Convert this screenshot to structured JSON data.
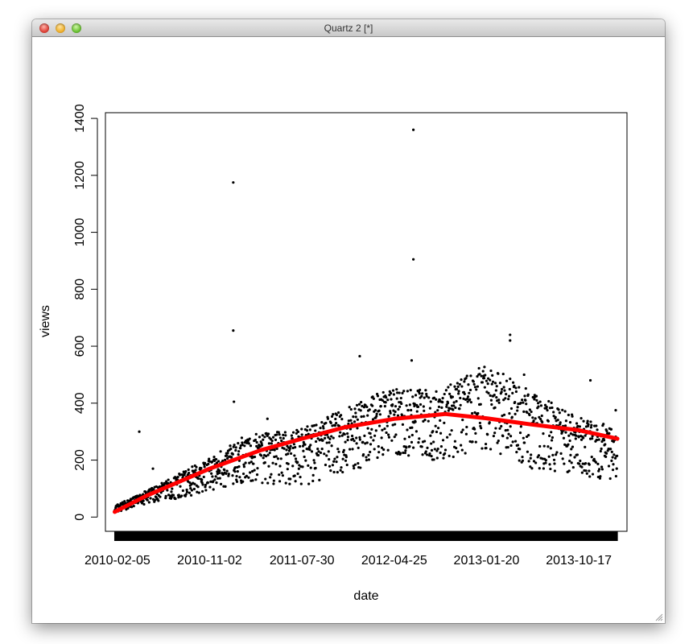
{
  "window": {
    "title": "Quartz 2 [*]"
  },
  "colors": {
    "smooth_line": "#ff0000",
    "points": "#000000"
  },
  "chart_data": {
    "type": "scatter",
    "title": "",
    "xlabel": "date",
    "ylabel": "views",
    "x_axis_type": "date",
    "xlim": [
      "2010-01-01",
      "2014-03-07"
    ],
    "ylim": [
      -50,
      1420
    ],
    "y_ticks": [
      0,
      200,
      400,
      600,
      800,
      1000,
      1200,
      1400
    ],
    "x_ticks": [
      "2010-02-05",
      "2010-11-02",
      "2011-07-30",
      "2012-04-25",
      "2013-01-20",
      "2013-10-17"
    ],
    "grid": false,
    "legend": "none",
    "rug_range": [
      "2010-01-28",
      "2014-02-07"
    ],
    "outliers": [
      {
        "x": "2010-04-10",
        "y": 300
      },
      {
        "x": "2010-05-20",
        "y": 170
      },
      {
        "x": "2011-01-10",
        "y": 1175
      },
      {
        "x": "2011-01-10",
        "y": 655
      },
      {
        "x": "2011-01-12",
        "y": 405
      },
      {
        "x": "2011-04-20",
        "y": 345
      },
      {
        "x": "2012-01-15",
        "y": 565
      },
      {
        "x": "2012-06-20",
        "y": 1360
      },
      {
        "x": "2012-06-20",
        "y": 905
      },
      {
        "x": "2012-06-15",
        "y": 550
      },
      {
        "x": "2013-03-30",
        "y": 640
      },
      {
        "x": "2013-03-30",
        "y": 620
      },
      {
        "x": "2013-05-10",
        "y": 500
      },
      {
        "x": "2013-11-20",
        "y": 480
      },
      {
        "x": "2014-02-02",
        "y": 375
      }
    ],
    "trend_upper": [
      {
        "x": "2010-01-28",
        "y": 40
      },
      {
        "x": "2010-06-01",
        "y": 110
      },
      {
        "x": "2010-11-02",
        "y": 210
      },
      {
        "x": "2011-02-01",
        "y": 285
      },
      {
        "x": "2011-07-30",
        "y": 310
      },
      {
        "x": "2011-12-01",
        "y": 380
      },
      {
        "x": "2012-04-25",
        "y": 460
      },
      {
        "x": "2012-09-01",
        "y": 440
      },
      {
        "x": "2013-01-20",
        "y": 540
      },
      {
        "x": "2013-06-01",
        "y": 440
      },
      {
        "x": "2013-10-17",
        "y": 350
      },
      {
        "x": "2014-02-07",
        "y": 320
      }
    ],
    "trend_lower": [
      {
        "x": "2010-01-28",
        "y": 15
      },
      {
        "x": "2010-06-01",
        "y": 50
      },
      {
        "x": "2010-11-02",
        "y": 90
      },
      {
        "x": "2011-02-01",
        "y": 120
      },
      {
        "x": "2011-07-30",
        "y": 110
      },
      {
        "x": "2011-12-01",
        "y": 150
      },
      {
        "x": "2012-04-25",
        "y": 220
      },
      {
        "x": "2012-09-01",
        "y": 190
      },
      {
        "x": "2013-01-20",
        "y": 230
      },
      {
        "x": "2013-06-01",
        "y": 170
      },
      {
        "x": "2013-10-17",
        "y": 150
      },
      {
        "x": "2014-02-07",
        "y": 120
      }
    ],
    "smooth_line": [
      {
        "x": "2010-01-28",
        "y": 18
      },
      {
        "x": "2010-05-01",
        "y": 75
      },
      {
        "x": "2010-11-02",
        "y": 170
      },
      {
        "x": "2011-04-01",
        "y": 235
      },
      {
        "x": "2011-07-30",
        "y": 275
      },
      {
        "x": "2011-12-01",
        "y": 315
      },
      {
        "x": "2012-04-25",
        "y": 345
      },
      {
        "x": "2012-09-22",
        "y": 362
      },
      {
        "x": "2013-01-20",
        "y": 347
      },
      {
        "x": "2013-06-01",
        "y": 325
      },
      {
        "x": "2013-10-17",
        "y": 305
      },
      {
        "x": "2014-02-07",
        "y": 275
      }
    ]
  }
}
